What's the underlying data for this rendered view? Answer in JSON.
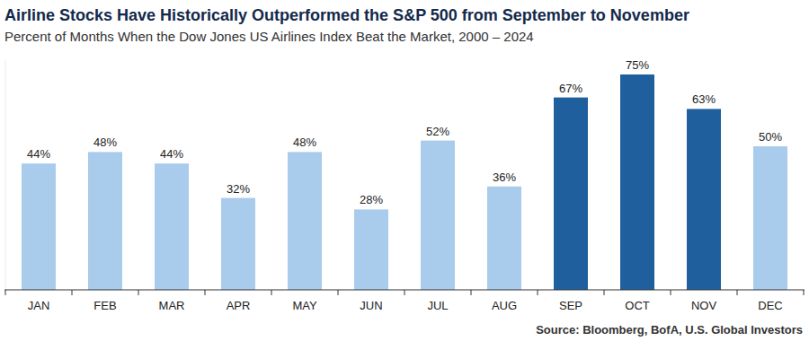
{
  "chart_data": {
    "type": "bar",
    "title": "Airline Stocks Have Historically Outperformed the S&P 500 from September to November",
    "subtitle": "Percent of Months When the Dow Jones US Airlines Index Beat the Market, 2000 – 2024",
    "source": "Source: Bloomberg, BofA, U.S. Global Investors",
    "categories": [
      "JAN",
      "FEB",
      "MAR",
      "APR",
      "MAY",
      "JUN",
      "JUL",
      "AUG",
      "SEP",
      "OCT",
      "NOV",
      "DEC"
    ],
    "values": [
      44,
      48,
      44,
      32,
      48,
      28,
      52,
      36,
      67,
      75,
      63,
      50
    ],
    "value_labels": [
      "44%",
      "48%",
      "44%",
      "32%",
      "48%",
      "28%",
      "52%",
      "36%",
      "67%",
      "75%",
      "63%",
      "50%"
    ],
    "colors": [
      "#a9cbec",
      "#a9cbec",
      "#a9cbec",
      "#a9cbec",
      "#a9cbec",
      "#a9cbec",
      "#a9cbec",
      "#a9cbec",
      "#1f5f9e",
      "#1f5f9e",
      "#1f5f9e",
      "#a9cbec"
    ],
    "ylim": [
      0,
      80
    ],
    "grid": false,
    "data_labels": true,
    "tick_labels": "x"
  }
}
